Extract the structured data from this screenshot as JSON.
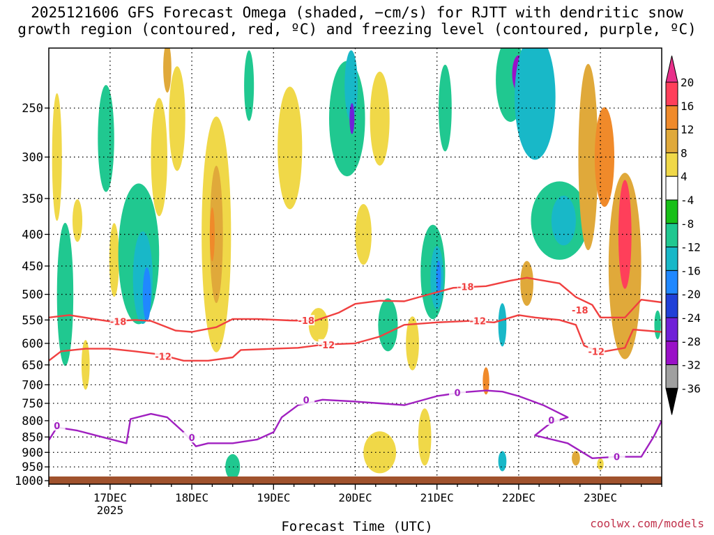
{
  "title_line1": "2025121606 GFS Forecast Omega (shaded, −cm/s) for RJTT with dendritic snow",
  "title_line2": "growth region (contoured, red, ºC) and freezing level (contoured, purple, ºC)",
  "credit": "coolwx.com/models",
  "chart_data": {
    "type": "heatmap",
    "title": "2025121606 GFS Forecast Omega (shaded, −cm/s) for RJTT with dendritic snow growth region (contoured, red, ºC) and freezing level (contoured, purple, ºC)",
    "xlabel": "Forecast Time (UTC)",
    "ylabel": "",
    "x_ticks": [
      {
        "day": 17,
        "label": "17DEC",
        "sublabel": "2025"
      },
      {
        "day": 18,
        "label": "18DEC",
        "sublabel": ""
      },
      {
        "day": 19,
        "label": "19DEC",
        "sublabel": ""
      },
      {
        "day": 20,
        "label": "20DEC",
        "sublabel": ""
      },
      {
        "day": 21,
        "label": "21DEC",
        "sublabel": ""
      },
      {
        "day": 22,
        "label": "22DEC",
        "sublabel": ""
      },
      {
        "day": 23,
        "label": "23DEC",
        "sublabel": ""
      }
    ],
    "xlim_days": [
      16.25,
      23.75
    ],
    "y_ticks": [
      250,
      300,
      350,
      400,
      450,
      500,
      550,
      600,
      650,
      700,
      750,
      800,
      850,
      900,
      950,
      1000
    ],
    "ylim_hpa": [
      200,
      1013
    ],
    "y_scale": "log-pressure",
    "grid": true,
    "colorbar": {
      "labels": [
        20,
        16,
        12,
        8,
        4,
        -4,
        -8,
        -12,
        -16,
        -20,
        -24,
        -28,
        -32,
        -36
      ],
      "colors": [
        "#ff3f5a",
        "#f08a2a",
        "#e0a93a",
        "#f0d848",
        "#ffffff",
        "#18c018",
        "#20c890",
        "#18b8c8",
        "#2088ff",
        "#2040d8",
        "#7020d8",
        "#9a10c8",
        "#a0a0a0"
      ],
      "top_cap_color": "#e8308a",
      "bottom_cap_color": "#000000"
    },
    "omega_regions": [
      {
        "t": 16.45,
        "p": 500,
        "dt": 0.1,
        "dp": 260,
        "v": -8
      },
      {
        "t": 16.35,
        "p": 300,
        "dt": 0.06,
        "dp": 140,
        "v": 6
      },
      {
        "t": 16.7,
        "p": 650,
        "dt": 0.05,
        "dp": 120,
        "v": 6
      },
      {
        "t": 16.95,
        "p": 280,
        "dt": 0.1,
        "dp": 110,
        "v": -8
      },
      {
        "t": 17.05,
        "p": 440,
        "dt": 0.06,
        "dp": 120,
        "v": 5
      },
      {
        "t": 17.35,
        "p": 430,
        "dt": 0.25,
        "dp": 220,
        "v": -8
      },
      {
        "t": 17.4,
        "p": 470,
        "dt": 0.12,
        "dp": 160,
        "v": -12
      },
      {
        "t": 17.45,
        "p": 500,
        "dt": 0.05,
        "dp": 100,
        "v": -16
      },
      {
        "t": 17.6,
        "p": 300,
        "dt": 0.1,
        "dp": 130,
        "v": 5
      },
      {
        "t": 17.7,
        "p": 215,
        "dt": 0.05,
        "dp": 40,
        "v": 10
      },
      {
        "t": 17.82,
        "p": 260,
        "dt": 0.1,
        "dp": 100,
        "v": 6
      },
      {
        "t": 18.3,
        "p": 400,
        "dt": 0.18,
        "dp": 330,
        "v": 6
      },
      {
        "t": 18.3,
        "p": 400,
        "dt": 0.08,
        "dp": 200,
        "v": 10
      },
      {
        "t": 18.25,
        "p": 400,
        "dt": 0.03,
        "dp": 80,
        "v": 14
      },
      {
        "t": 18.5,
        "p": 960,
        "dt": 0.06,
        "dp": 60,
        "v": -12
      },
      {
        "t": 18.5,
        "p": 950,
        "dt": 0.09,
        "dp": 90,
        "v": -8
      },
      {
        "t": 18.7,
        "p": 230,
        "dt": 0.06,
        "dp": 60,
        "v": -8
      },
      {
        "t": 19.2,
        "p": 290,
        "dt": 0.15,
        "dp": 130,
        "v": 5
      },
      {
        "t": 19.9,
        "p": 260,
        "dt": 0.22,
        "dp": 110,
        "v": -8
      },
      {
        "t": 19.95,
        "p": 230,
        "dt": 0.08,
        "dp": 60,
        "v": -12
      },
      {
        "t": 19.96,
        "p": 260,
        "dt": 0.03,
        "dp": 30,
        "v": -24
      },
      {
        "t": 20.3,
        "p": 260,
        "dt": 0.12,
        "dp": 90,
        "v": 6
      },
      {
        "t": 20.4,
        "p": 560,
        "dt": 0.12,
        "dp": 110,
        "v": -8
      },
      {
        "t": 20.3,
        "p": 900,
        "dt": 0.2,
        "dp": 140,
        "v": 5
      },
      {
        "t": 20.7,
        "p": 600,
        "dt": 0.08,
        "dp": 120,
        "v": 6
      },
      {
        "t": 20.95,
        "p": 460,
        "dt": 0.15,
        "dp": 160,
        "v": -8
      },
      {
        "t": 21.0,
        "p": 470,
        "dt": 0.08,
        "dp": 110,
        "v": -12
      },
      {
        "t": 21.02,
        "p": 470,
        "dt": 0.03,
        "dp": 60,
        "v": -16
      },
      {
        "t": 21.1,
        "p": 250,
        "dt": 0.08,
        "dp": 80,
        "v": -8
      },
      {
        "t": 20.85,
        "p": 850,
        "dt": 0.08,
        "dp": 180,
        "v": 6
      },
      {
        "t": 21.6,
        "p": 690,
        "dt": 0.04,
        "dp": 70,
        "v": 12
      },
      {
        "t": 21.8,
        "p": 560,
        "dt": 0.05,
        "dp": 90,
        "v": -12
      },
      {
        "t": 21.8,
        "p": 930,
        "dt": 0.05,
        "dp": 70,
        "v": -12
      },
      {
        "t": 21.9,
        "p": 225,
        "dt": 0.18,
        "dp": 70,
        "v": -8
      },
      {
        "t": 22.0,
        "p": 220,
        "dt": 0.08,
        "dp": 30,
        "v": -28
      },
      {
        "t": 22.2,
        "p": 240,
        "dt": 0.25,
        "dp": 110,
        "v": -12
      },
      {
        "t": 22.1,
        "p": 480,
        "dt": 0.08,
        "dp": 80,
        "v": 10
      },
      {
        "t": 22.5,
        "p": 380,
        "dt": 0.35,
        "dp": 110,
        "v": -8
      },
      {
        "t": 22.55,
        "p": 380,
        "dt": 0.15,
        "dp": 70,
        "v": -12
      },
      {
        "t": 22.85,
        "p": 300,
        "dt": 0.12,
        "dp": 200,
        "v": 10
      },
      {
        "t": 23.05,
        "p": 300,
        "dt": 0.12,
        "dp": 110,
        "v": 12
      },
      {
        "t": 23.3,
        "p": 450,
        "dt": 0.2,
        "dp": 300,
        "v": 10
      },
      {
        "t": 23.3,
        "p": 400,
        "dt": 0.08,
        "dp": 160,
        "v": 16
      },
      {
        "t": 23.7,
        "p": 560,
        "dt": 0.04,
        "dp": 60,
        "v": -8
      },
      {
        "t": 22.7,
        "p": 920,
        "dt": 0.05,
        "dp": 50,
        "v": 8
      },
      {
        "t": 23.0,
        "p": 940,
        "dt": 0.04,
        "dp": 40,
        "v": 5
      },
      {
        "t": 16.6,
        "p": 380,
        "dt": 0.06,
        "dp": 60,
        "v": 6
      },
      {
        "t": 19.55,
        "p": 560,
        "dt": 0.12,
        "dp": 70,
        "v": 5
      },
      {
        "t": 20.1,
        "p": 400,
        "dt": 0.1,
        "dp": 90,
        "v": 5
      }
    ],
    "contours": [
      {
        "name": "-18",
        "color": "#f04040",
        "label": "-18",
        "points": [
          [
            16.25,
            545
          ],
          [
            16.5,
            540
          ],
          [
            16.8,
            548
          ],
          [
            17.0,
            553
          ],
          [
            17.3,
            550
          ],
          [
            17.5,
            552
          ],
          [
            17.8,
            572
          ],
          [
            18.0,
            575
          ],
          [
            18.3,
            565
          ],
          [
            18.5,
            548
          ],
          [
            18.8,
            548
          ],
          [
            19.2,
            551
          ],
          [
            19.5,
            552
          ],
          [
            19.8,
            535
          ],
          [
            20.0,
            518
          ],
          [
            20.3,
            512
          ],
          [
            20.6,
            513
          ],
          [
            20.9,
            500
          ],
          [
            21.2,
            488
          ],
          [
            21.6,
            485
          ],
          [
            21.9,
            475
          ],
          [
            22.1,
            470
          ],
          [
            22.5,
            480
          ],
          [
            22.7,
            505
          ],
          [
            22.9,
            520
          ],
          [
            23.0,
            545
          ],
          [
            23.3,
            545
          ],
          [
            23.5,
            510
          ],
          [
            23.75,
            515
          ]
        ],
        "label_at": [
          [
            17.1,
            553
          ],
          [
            19.4,
            551
          ],
          [
            21.35,
            486
          ],
          [
            22.75,
            530
          ]
        ]
      },
      {
        "name": "-12",
        "color": "#f04040",
        "label": "-12",
        "points": [
          [
            16.25,
            640
          ],
          [
            16.4,
            618
          ],
          [
            16.7,
            612
          ],
          [
            17.0,
            612
          ],
          [
            17.3,
            618
          ],
          [
            17.6,
            625
          ],
          [
            17.9,
            640
          ],
          [
            18.2,
            640
          ],
          [
            18.5,
            632
          ],
          [
            18.6,
            615
          ],
          [
            19.0,
            612
          ],
          [
            19.3,
            610
          ],
          [
            19.6,
            603
          ],
          [
            20.0,
            600
          ],
          [
            20.3,
            585
          ],
          [
            20.6,
            560
          ],
          [
            21.0,
            555
          ],
          [
            21.4,
            552
          ],
          [
            21.7,
            555
          ],
          [
            22.0,
            540
          ],
          [
            22.2,
            545
          ],
          [
            22.5,
            550
          ],
          [
            22.7,
            560
          ],
          [
            22.8,
            605
          ],
          [
            23.0,
            620
          ],
          [
            23.3,
            610
          ],
          [
            23.4,
            570
          ],
          [
            23.75,
            575
          ]
        ],
        "label_at": [
          [
            17.65,
            630
          ],
          [
            19.65,
            603
          ],
          [
            21.5,
            552
          ],
          [
            22.95,
            618
          ]
        ]
      },
      {
        "name": "0",
        "color": "#a020c0",
        "label": "0",
        "points": [
          [
            16.25,
            860
          ],
          [
            16.35,
            820
          ],
          [
            16.6,
            830
          ],
          [
            16.9,
            850
          ],
          [
            17.2,
            870
          ],
          [
            17.25,
            795
          ],
          [
            17.5,
            780
          ],
          [
            17.7,
            790
          ],
          [
            17.9,
            835
          ],
          [
            18.05,
            880
          ],
          [
            18.2,
            870
          ],
          [
            18.5,
            870
          ],
          [
            18.8,
            858
          ],
          [
            19.0,
            835
          ],
          [
            19.1,
            790
          ],
          [
            19.3,
            755
          ],
          [
            19.6,
            740
          ],
          [
            20.0,
            745
          ],
          [
            20.3,
            750
          ],
          [
            20.6,
            755
          ],
          [
            21.0,
            730
          ],
          [
            21.3,
            720
          ],
          [
            21.6,
            715
          ],
          [
            21.8,
            718
          ],
          [
            22.0,
            730
          ],
          [
            22.3,
            755
          ],
          [
            22.6,
            790
          ],
          [
            22.4,
            805
          ],
          [
            22.2,
            845
          ],
          [
            22.6,
            870
          ],
          [
            22.9,
            920
          ],
          [
            23.2,
            915
          ],
          [
            23.5,
            915
          ],
          [
            23.65,
            850
          ],
          [
            23.75,
            800
          ]
        ],
        "label_at": [
          [
            16.35,
            815
          ],
          [
            18.0,
            852
          ],
          [
            19.4,
            740
          ],
          [
            21.25,
            720
          ],
          [
            22.4,
            798
          ],
          [
            23.2,
            915
          ]
        ]
      }
    ]
  }
}
